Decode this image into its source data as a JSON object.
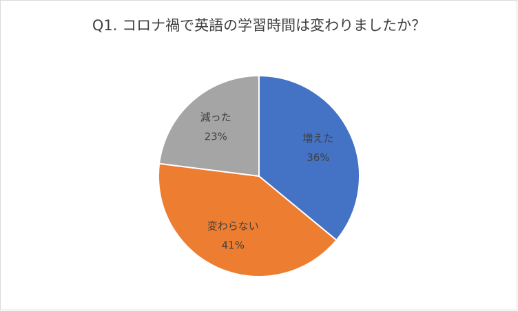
{
  "chart_data": {
    "type": "pie",
    "title": "Q1. コロナ禍で英語の学習時間は変わりましたか？",
    "categories": [
      "増えた",
      "変わらない",
      "減った"
    ],
    "values": [
      36,
      41,
      23
    ],
    "value_labels": [
      "36%",
      "41%",
      "23%"
    ],
    "colors": [
      "#4472c4",
      "#ed7d31",
      "#a5a5a5"
    ]
  }
}
